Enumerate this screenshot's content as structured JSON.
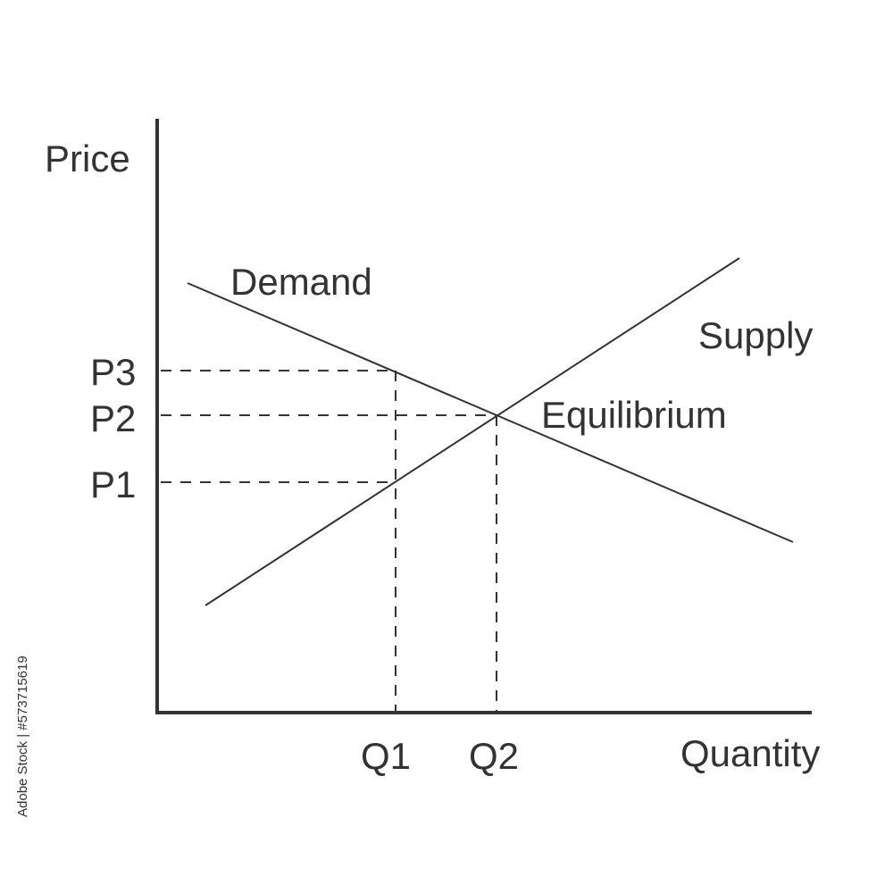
{
  "diagram": {
    "axes": {
      "y_label": "Price",
      "x_label": "Quantity"
    },
    "curves": {
      "demand_label": "Demand",
      "supply_label": "Supply"
    },
    "point_label": "Equilibrium",
    "price_ticks": [
      "P3",
      "P2",
      "P1"
    ],
    "quantity_ticks": [
      "Q1",
      "Q2"
    ],
    "watermark_id": "573715619",
    "watermark_source": "Adobe Stock",
    "watermark_text": "Adobe Stock | #573715619"
  }
}
